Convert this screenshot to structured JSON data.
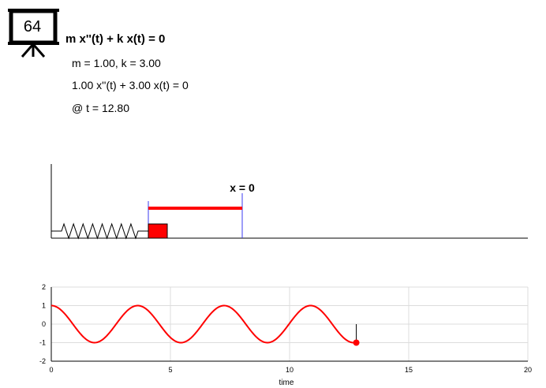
{
  "badge": {
    "number": "64",
    "icon": "presentation-board-icon"
  },
  "equation": {
    "title": "m x''(t) + k x(t) = 0",
    "params": "m = 1.00, k = 3.00",
    "instance": "1.00 x''(t) + 3.00 x(t) = 0",
    "time": "@ t = 12.80"
  },
  "spring_view": {
    "equilibrium_label": "x = 0",
    "colors": {
      "mass": "#ff0000",
      "displacement": "#ff0000",
      "markers": "#3b3bf0",
      "spring": "#000000"
    }
  },
  "chart_data": {
    "type": "line",
    "title": "",
    "xlabel": "time",
    "ylabel": "",
    "xlim": [
      0,
      20
    ],
    "ylim": [
      -2,
      2
    ],
    "x_ticks": [
      "0",
      "5",
      "10",
      "15",
      "20"
    ],
    "y_ticks": [
      "2",
      "1",
      "0",
      "-1",
      "-2"
    ],
    "grid": true,
    "series": [
      {
        "function": "cos(sqrt(3) t)",
        "t_range": [
          0,
          12.8
        ],
        "color": "#ff0000"
      }
    ],
    "current_point": {
      "t": 12.8,
      "x": -1.0
    }
  }
}
